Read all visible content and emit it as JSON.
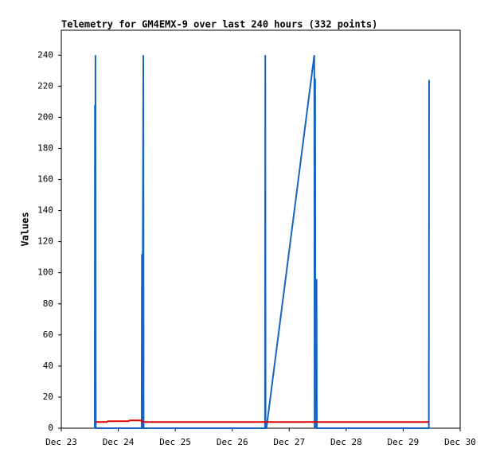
{
  "chart_data": {
    "type": "line",
    "title": "Telemetry for GM4EMX-9 over last 240 hours (332 points)",
    "ylabel": "Values",
    "xlim": [
      0,
      7
    ],
    "xticks": [
      {
        "value": 0,
        "label": "Dec 23"
      },
      {
        "value": 1,
        "label": "Dec 24"
      },
      {
        "value": 2,
        "label": "Dec 25"
      },
      {
        "value": 3,
        "label": "Dec 26"
      },
      {
        "value": 4,
        "label": "Dec 27"
      },
      {
        "value": 5,
        "label": "Dec 28"
      },
      {
        "value": 6,
        "label": "Dec 29"
      },
      {
        "value": 7,
        "label": "Dec 30"
      }
    ],
    "ylim": [
      0,
      256
    ],
    "yticks": [
      0,
      20,
      40,
      60,
      80,
      100,
      120,
      140,
      160,
      180,
      200,
      220,
      240
    ],
    "series": [
      {
        "color": "#1565c0",
        "x": [
          0.587,
          0.59,
          0.595,
          0.6,
          0.605,
          1.41,
          1.415,
          1.42,
          1.44,
          1.445,
          3.575,
          3.58,
          3.585,
          3.6,
          4.44,
          4.445,
          4.455,
          4.46,
          4.48,
          4.485,
          6.45,
          6.455
        ],
        "values": [
          0,
          208,
          0,
          240,
          0,
          0,
          112,
          0,
          240,
          0,
          0,
          240,
          0,
          0,
          240,
          0,
          225,
          0,
          96,
          0,
          0,
          224
        ]
      },
      {
        "color": "#e00000",
        "x": [
          0.587,
          0.8,
          0.82,
          1.18,
          1.2,
          1.41,
          1.43,
          6.45
        ],
        "values": [
          4,
          4,
          4.5,
          4.5,
          5,
          5,
          4,
          4
        ]
      }
    ]
  }
}
